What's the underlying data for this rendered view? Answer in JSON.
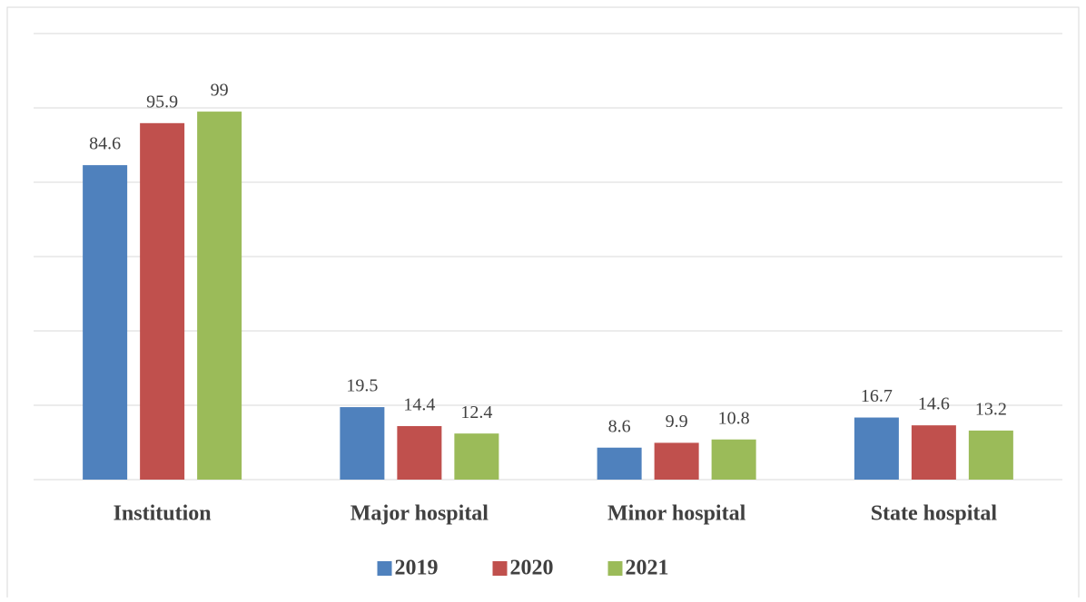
{
  "chart_data": {
    "type": "bar",
    "categories": [
      "Institution",
      "Major hospital",
      "Minor hospital",
      "State hospital"
    ],
    "series": [
      {
        "name": "2019",
        "color": "#4f81bd",
        "values": [
          84.6,
          19.5,
          8.6,
          16.7
        ]
      },
      {
        "name": "2020",
        "color": "#c0504d",
        "values": [
          95.9,
          14.4,
          9.9,
          14.6
        ]
      },
      {
        "name": "2021",
        "color": "#9bbb59",
        "values": [
          99,
          12.4,
          10.8,
          13.2
        ]
      }
    ],
    "ylim": [
      0,
      120
    ],
    "yticks": [
      0,
      20,
      40,
      60,
      80,
      100,
      120
    ],
    "grid": true,
    "legend": "bottom"
  }
}
